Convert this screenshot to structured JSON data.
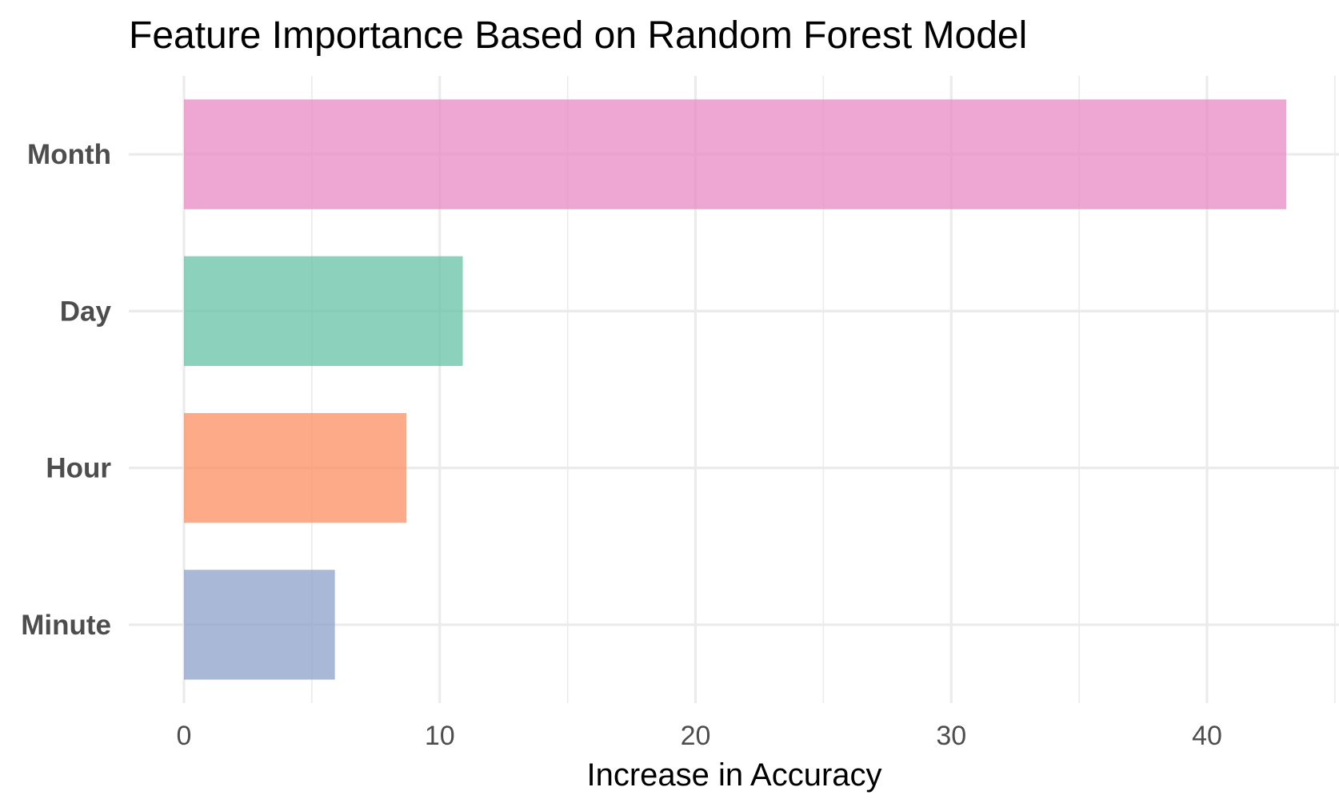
{
  "chart_data": {
    "type": "bar",
    "orientation": "horizontal",
    "title": "Feature Importance Based on Random Forest Model",
    "xlabel": "Increase in Accuracy",
    "ylabel": "",
    "categories": [
      "Month",
      "Day",
      "Hour",
      "Minute"
    ],
    "values": [
      43.1,
      10.9,
      8.7,
      5.9
    ],
    "colors": [
      "#e78ac3",
      "#66c2a5",
      "#fc8d62",
      "#8da0cb"
    ],
    "bar_opacity": 0.75,
    "xlim": [
      -2.1,
      45
    ],
    "xticks": [
      0,
      10,
      20,
      30,
      40
    ],
    "grid": true,
    "legend": "none"
  }
}
